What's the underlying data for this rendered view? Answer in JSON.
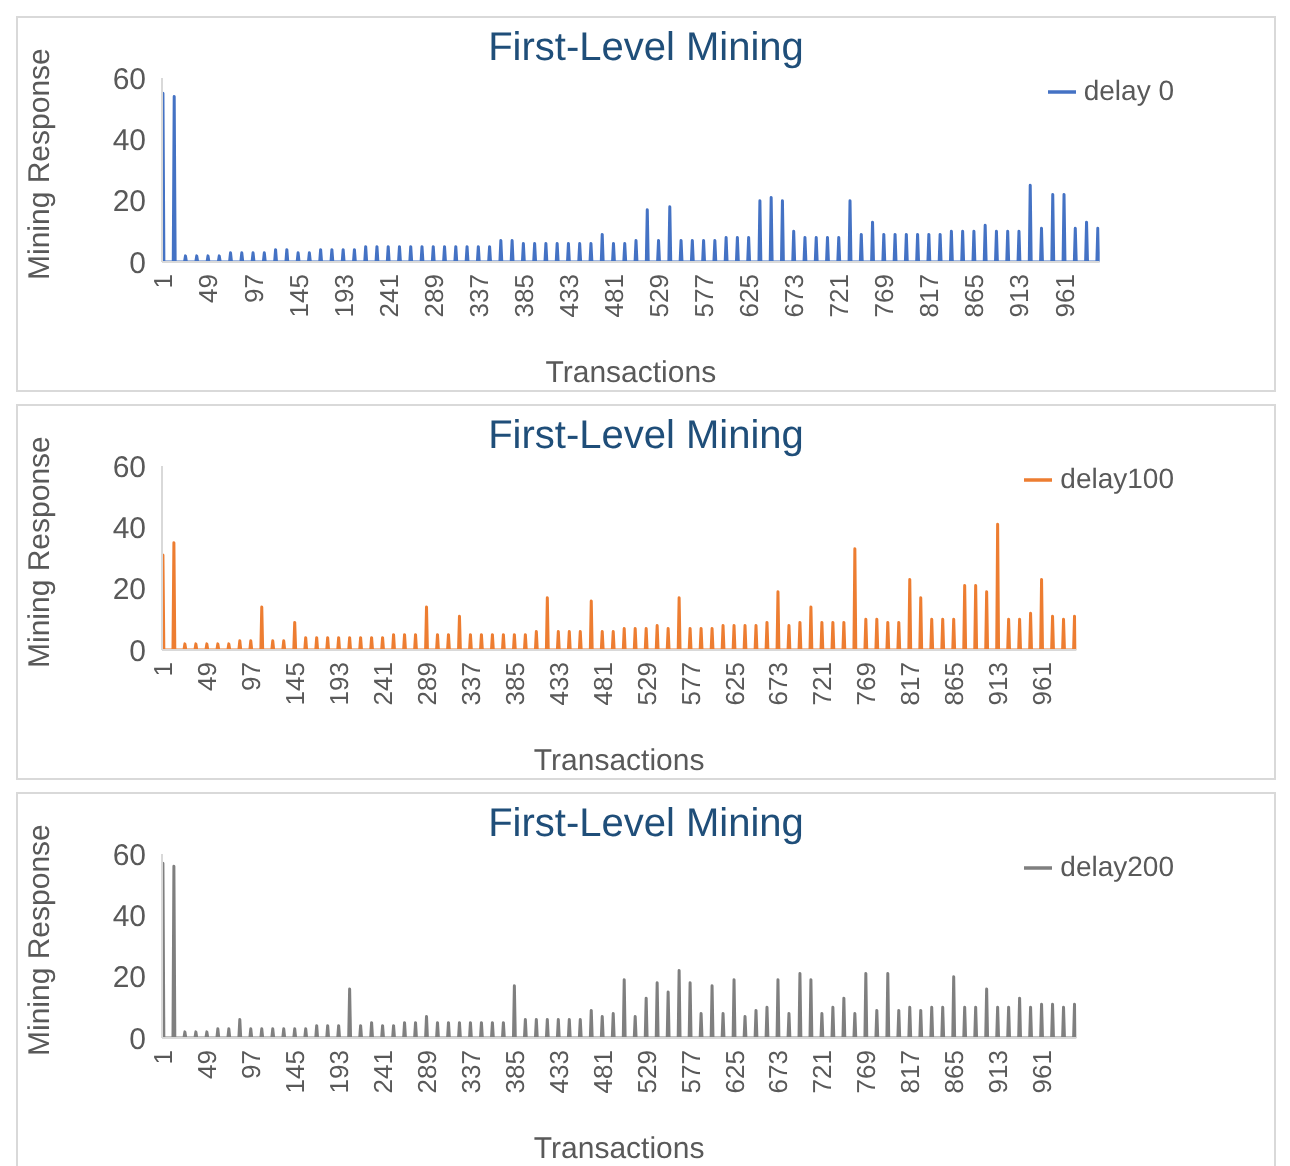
{
  "chart_data": [
    {
      "type": "line",
      "title": "First-Level Mining",
      "xlabel": "Transactions",
      "ylabel": "Mining Response",
      "legend": "top right",
      "xlim": [
        1,
        1000
      ],
      "xticks": [
        1,
        49,
        97,
        145,
        193,
        241,
        289,
        337,
        385,
        433,
        481,
        529,
        577,
        625,
        673,
        721,
        769,
        817,
        865,
        913,
        961
      ],
      "ylim": [
        0,
        60
      ],
      "yticks": [
        0,
        20,
        40,
        60
      ],
      "x": [
        1,
        2,
        3,
        13,
        14,
        15,
        25,
        26,
        27,
        37,
        38,
        39,
        49,
        50,
        51,
        61,
        62,
        63,
        73,
        74,
        75,
        85,
        86,
        87,
        97,
        98,
        99,
        109,
        110,
        111,
        121,
        122,
        123,
        133,
        134,
        135,
        145,
        146,
        147,
        157,
        158,
        159,
        169,
        170,
        171,
        181,
        182,
        183,
        193,
        194,
        195,
        205,
        206,
        207,
        217,
        218,
        219,
        229,
        230,
        231,
        241,
        242,
        243,
        253,
        254,
        255,
        265,
        266,
        267,
        277,
        278,
        279,
        289,
        290,
        291,
        301,
        302,
        303,
        313,
        314,
        315,
        325,
        326,
        327,
        337,
        338,
        339,
        349,
        350,
        351,
        361,
        362,
        363,
        373,
        374,
        375,
        385,
        386,
        387,
        397,
        398,
        399,
        409,
        410,
        411,
        421,
        422,
        423,
        433,
        434,
        435,
        445,
        446,
        447,
        457,
        458,
        459,
        469,
        470,
        471,
        481,
        482,
        483,
        493,
        494,
        495,
        505,
        506,
        507,
        517,
        518,
        519,
        529,
        530,
        531,
        541,
        542,
        543,
        553,
        554,
        555,
        565,
        566,
        567,
        577,
        578,
        579,
        589,
        590,
        591,
        601,
        602,
        603,
        613,
        614,
        615,
        625,
        626,
        627,
        637,
        638,
        639,
        649,
        650,
        651,
        661,
        662,
        663,
        673,
        674,
        675,
        685,
        686,
        687,
        697,
        698,
        699,
        709,
        710,
        711,
        721,
        722,
        723,
        733,
        734,
        735,
        745,
        746,
        747,
        757,
        758,
        759,
        769,
        770,
        771,
        781,
        782,
        783,
        793,
        794,
        795,
        805,
        806,
        807,
        817,
        818,
        819,
        829,
        830,
        831,
        841,
        842,
        843,
        853,
        854,
        855,
        865,
        866,
        867,
        877,
        878,
        879,
        889,
        890,
        891,
        901,
        902,
        903,
        913,
        914,
        915,
        925,
        926,
        927,
        937,
        938,
        939,
        949,
        950,
        951,
        961,
        962,
        963,
        973,
        974,
        975,
        985,
        986,
        987,
        997,
        998,
        999
      ],
      "series": [
        {
          "name": "delay 0",
          "color": "#4472c4",
          "values": [
            0,
            55,
            0,
            0,
            54,
            0,
            0,
            2,
            0,
            0,
            2,
            0,
            0,
            2,
            0,
            0,
            2,
            0,
            0,
            3,
            0,
            0,
            3,
            0,
            0,
            3,
            0,
            0,
            3,
            0,
            0,
            4,
            0,
            0,
            4,
            0,
            0,
            3,
            0,
            0,
            3,
            0,
            0,
            4,
            0,
            0,
            4,
            0,
            0,
            4,
            0,
            0,
            4,
            0,
            0,
            5,
            0,
            0,
            5,
            0,
            0,
            5,
            0,
            0,
            5,
            0,
            0,
            5,
            0,
            0,
            5,
            0,
            0,
            5,
            0,
            0,
            5,
            0,
            0,
            5,
            0,
            0,
            5,
            0,
            0,
            5,
            0,
            0,
            5,
            0,
            0,
            7,
            0,
            0,
            7,
            0,
            0,
            6,
            0,
            0,
            6,
            0,
            0,
            6,
            0,
            0,
            6,
            0,
            0,
            6,
            0,
            0,
            6,
            0,
            0,
            6,
            0,
            0,
            9,
            0,
            0,
            6,
            0,
            0,
            6,
            0,
            0,
            7,
            0,
            0,
            17,
            0,
            0,
            7,
            0,
            0,
            18,
            0,
            0,
            7,
            0,
            0,
            7,
            0,
            0,
            7,
            0,
            0,
            7,
            0,
            0,
            8,
            0,
            0,
            8,
            0,
            0,
            8,
            0,
            0,
            20,
            0,
            0,
            21,
            0,
            0,
            20,
            0,
            0,
            10,
            0,
            0,
            8,
            0,
            0,
            8,
            0,
            0,
            8,
            0,
            0,
            8,
            0,
            0,
            20,
            0,
            0,
            9,
            0,
            0,
            13,
            0,
            0,
            9,
            0,
            0,
            9,
            0,
            0,
            9,
            0,
            0,
            9,
            0,
            0,
            9,
            0,
            0,
            9,
            0,
            0,
            10,
            0,
            0,
            10,
            0,
            0,
            10,
            0,
            0,
            12,
            0,
            0,
            10,
            0,
            0,
            10,
            0,
            0,
            10,
            0,
            0,
            25,
            0,
            0,
            11,
            0,
            0,
            22,
            0,
            0,
            22,
            0,
            0,
            11,
            0,
            0,
            13,
            0,
            0,
            11,
            0
          ]
        }
      ]
    },
    {
      "type": "line",
      "title": "First-Level Mining",
      "xlabel": "Transactions",
      "ylabel": "Mining Response",
      "legend": "top right",
      "xlim": [
        1,
        1000
      ],
      "xticks": [
        1,
        49,
        97,
        145,
        193,
        241,
        289,
        337,
        385,
        433,
        481,
        529,
        577,
        625,
        673,
        721,
        769,
        817,
        865,
        913,
        961
      ],
      "ylim": [
        0,
        60
      ],
      "yticks": [
        0,
        20,
        40,
        60
      ],
      "x": [
        1,
        2,
        3,
        13,
        14,
        15,
        25,
        26,
        27,
        37,
        38,
        39,
        49,
        50,
        51,
        61,
        62,
        63,
        73,
        74,
        75,
        85,
        86,
        87,
        97,
        98,
        99,
        109,
        110,
        111,
        121,
        122,
        123,
        133,
        134,
        135,
        145,
        146,
        147,
        157,
        158,
        159,
        169,
        170,
        171,
        181,
        182,
        183,
        193,
        194,
        195,
        205,
        206,
        207,
        217,
        218,
        219,
        229,
        230,
        231,
        241,
        242,
        243,
        253,
        254,
        255,
        265,
        266,
        267,
        277,
        278,
        279,
        289,
        290,
        291,
        301,
        302,
        303,
        313,
        314,
        315,
        325,
        326,
        327,
        337,
        338,
        339,
        349,
        350,
        351,
        361,
        362,
        363,
        373,
        374,
        375,
        385,
        386,
        387,
        397,
        398,
        399,
        409,
        410,
        411,
        421,
        422,
        423,
        433,
        434,
        435,
        445,
        446,
        447,
        457,
        458,
        459,
        469,
        470,
        471,
        481,
        482,
        483,
        493,
        494,
        495,
        505,
        506,
        507,
        517,
        518,
        519,
        529,
        530,
        531,
        541,
        542,
        543,
        553,
        554,
        555,
        565,
        566,
        567,
        577,
        578,
        579,
        589,
        590,
        591,
        601,
        602,
        603,
        613,
        614,
        615,
        625,
        626,
        627,
        637,
        638,
        639,
        649,
        650,
        651,
        661,
        662,
        663,
        673,
        674,
        675,
        685,
        686,
        687,
        697,
        698,
        699,
        709,
        710,
        711,
        721,
        722,
        723,
        733,
        734,
        735,
        745,
        746,
        747,
        757,
        758,
        759,
        769,
        770,
        771,
        781,
        782,
        783,
        793,
        794,
        795,
        805,
        806,
        807,
        817,
        818,
        819,
        829,
        830,
        831,
        841,
        842,
        843,
        853,
        854,
        855,
        865,
        866,
        867,
        877,
        878,
        879,
        889,
        890,
        891,
        901,
        902,
        903,
        913,
        914,
        915,
        925,
        926,
        927,
        937,
        938,
        939,
        949,
        950,
        951,
        961,
        962,
        963,
        973,
        974,
        975,
        985,
        986,
        987,
        997,
        998,
        999
      ],
      "series": [
        {
          "name": "delay100",
          "color": "#ed7d31",
          "values": [
            0,
            31,
            0,
            0,
            35,
            0,
            0,
            2,
            0,
            0,
            2,
            0,
            0,
            2,
            0,
            0,
            2,
            0,
            0,
            2,
            0,
            0,
            3,
            0,
            0,
            3,
            0,
            0,
            14,
            0,
            0,
            3,
            0,
            0,
            3,
            0,
            0,
            9,
            0,
            0,
            4,
            0,
            0,
            4,
            0,
            0,
            4,
            0,
            0,
            4,
            0,
            0,
            4,
            0,
            0,
            4,
            0,
            0,
            4,
            0,
            0,
            4,
            0,
            0,
            5,
            0,
            0,
            5,
            0,
            0,
            5,
            0,
            0,
            14,
            0,
            0,
            5,
            0,
            0,
            5,
            0,
            0,
            11,
            0,
            0,
            5,
            0,
            0,
            5,
            0,
            0,
            5,
            0,
            0,
            5,
            0,
            0,
            5,
            0,
            0,
            5,
            0,
            0,
            6,
            0,
            0,
            17,
            0,
            0,
            6,
            0,
            0,
            6,
            0,
            0,
            6,
            0,
            0,
            16,
            0,
            0,
            6,
            0,
            0,
            6,
            0,
            0,
            7,
            0,
            0,
            7,
            0,
            0,
            7,
            0,
            0,
            8,
            0,
            0,
            7,
            0,
            0,
            17,
            0,
            0,
            7,
            0,
            0,
            7,
            0,
            0,
            7,
            0,
            0,
            8,
            0,
            0,
            8,
            0,
            0,
            8,
            0,
            0,
            8,
            0,
            0,
            9,
            0,
            0,
            19,
            0,
            0,
            8,
            0,
            0,
            9,
            0,
            0,
            14,
            0,
            0,
            9,
            0,
            0,
            9,
            0,
            0,
            9,
            0,
            0,
            33,
            0,
            0,
            10,
            0,
            0,
            10,
            0,
            0,
            9,
            0,
            0,
            9,
            0,
            0,
            23,
            0,
            0,
            17,
            0,
            0,
            10,
            0,
            0,
            10,
            0,
            0,
            10,
            0,
            0,
            21,
            0,
            0,
            21,
            0,
            0,
            19,
            0,
            0,
            41,
            0,
            0,
            10,
            0,
            0,
            10,
            0,
            0,
            12,
            0,
            0,
            23,
            0,
            0,
            11,
            0,
            0,
            10,
            0,
            0,
            11,
            0
          ]
        }
      ]
    },
    {
      "type": "line",
      "title": "First-Level Mining",
      "xlabel": "Transactions",
      "ylabel": "Mining Response",
      "legend": "top right",
      "xlim": [
        1,
        1000
      ],
      "xticks": [
        1,
        49,
        97,
        145,
        193,
        241,
        289,
        337,
        385,
        433,
        481,
        529,
        577,
        625,
        673,
        721,
        769,
        817,
        865,
        913,
        961
      ],
      "ylim": [
        0,
        60
      ],
      "yticks": [
        0,
        20,
        40,
        60
      ],
      "x": [
        1,
        2,
        3,
        13,
        14,
        15,
        25,
        26,
        27,
        37,
        38,
        39,
        49,
        50,
        51,
        61,
        62,
        63,
        73,
        74,
        75,
        85,
        86,
        87,
        97,
        98,
        99,
        109,
        110,
        111,
        121,
        122,
        123,
        133,
        134,
        135,
        145,
        146,
        147,
        157,
        158,
        159,
        169,
        170,
        171,
        181,
        182,
        183,
        193,
        194,
        195,
        205,
        206,
        207,
        217,
        218,
        219,
        229,
        230,
        231,
        241,
        242,
        243,
        253,
        254,
        255,
        265,
        266,
        267,
        277,
        278,
        279,
        289,
        290,
        291,
        301,
        302,
        303,
        313,
        314,
        315,
        325,
        326,
        327,
        337,
        338,
        339,
        349,
        350,
        351,
        361,
        362,
        363,
        373,
        374,
        375,
        385,
        386,
        387,
        397,
        398,
        399,
        409,
        410,
        411,
        421,
        422,
        423,
        433,
        434,
        435,
        445,
        446,
        447,
        457,
        458,
        459,
        469,
        470,
        471,
        481,
        482,
        483,
        493,
        494,
        495,
        505,
        506,
        507,
        517,
        518,
        519,
        529,
        530,
        531,
        541,
        542,
        543,
        553,
        554,
        555,
        565,
        566,
        567,
        577,
        578,
        579,
        589,
        590,
        591,
        601,
        602,
        603,
        613,
        614,
        615,
        625,
        626,
        627,
        637,
        638,
        639,
        649,
        650,
        651,
        661,
        662,
        663,
        673,
        674,
        675,
        685,
        686,
        687,
        697,
        698,
        699,
        709,
        710,
        711,
        721,
        722,
        723,
        733,
        734,
        735,
        745,
        746,
        747,
        757,
        758,
        759,
        769,
        770,
        771,
        781,
        782,
        783,
        793,
        794,
        795,
        805,
        806,
        807,
        817,
        818,
        819,
        829,
        830,
        831,
        841,
        842,
        843,
        853,
        854,
        855,
        865,
        866,
        867,
        877,
        878,
        879,
        889,
        890,
        891,
        901,
        902,
        903,
        913,
        914,
        915,
        925,
        926,
        927,
        937,
        938,
        939,
        949,
        950,
        951,
        961,
        962,
        963,
        973,
        974,
        975,
        985,
        986,
        987,
        997,
        998,
        999
      ],
      "series": [
        {
          "name": "delay200",
          "color": "#7f7f7f",
          "values": [
            0,
            57,
            0,
            0,
            56,
            0,
            0,
            2,
            0,
            0,
            2,
            0,
            0,
            2,
            0,
            0,
            3,
            0,
            0,
            3,
            0,
            0,
            6,
            0,
            0,
            3,
            0,
            0,
            3,
            0,
            0,
            3,
            0,
            0,
            3,
            0,
            0,
            3,
            0,
            0,
            3,
            0,
            0,
            4,
            0,
            0,
            4,
            0,
            0,
            4,
            0,
            0,
            16,
            0,
            0,
            4,
            0,
            0,
            5,
            0,
            0,
            4,
            0,
            0,
            4,
            0,
            0,
            5,
            0,
            0,
            5,
            0,
            0,
            7,
            0,
            0,
            5,
            0,
            0,
            5,
            0,
            0,
            5,
            0,
            0,
            5,
            0,
            0,
            5,
            0,
            0,
            5,
            0,
            0,
            5,
            0,
            0,
            17,
            0,
            0,
            6,
            0,
            0,
            6,
            0,
            0,
            6,
            0,
            0,
            6,
            0,
            0,
            6,
            0,
            0,
            6,
            0,
            0,
            9,
            0,
            0,
            7,
            0,
            0,
            8,
            0,
            0,
            19,
            0,
            0,
            7,
            0,
            0,
            13,
            0,
            0,
            18,
            0,
            0,
            15,
            0,
            0,
            22,
            0,
            0,
            18,
            0,
            0,
            8,
            0,
            0,
            17,
            0,
            0,
            8,
            0,
            0,
            19,
            0,
            0,
            7,
            0,
            0,
            9,
            0,
            0,
            10,
            0,
            0,
            19,
            0,
            0,
            8,
            0,
            0,
            21,
            0,
            0,
            19,
            0,
            0,
            8,
            0,
            0,
            10,
            0,
            0,
            13,
            0,
            0,
            8,
            0,
            0,
            21,
            0,
            0,
            9,
            0,
            0,
            21,
            0,
            0,
            9,
            0,
            0,
            10,
            0,
            0,
            9,
            0,
            0,
            10,
            0,
            0,
            10,
            0,
            0,
            20,
            0,
            0,
            10,
            0,
            0,
            10,
            0,
            0,
            16,
            0,
            0,
            10,
            0,
            0,
            10,
            0,
            0,
            13,
            0,
            0,
            10,
            0,
            0,
            11,
            0,
            0,
            11,
            0,
            0,
            10,
            0,
            0,
            11,
            0
          ]
        }
      ]
    }
  ]
}
